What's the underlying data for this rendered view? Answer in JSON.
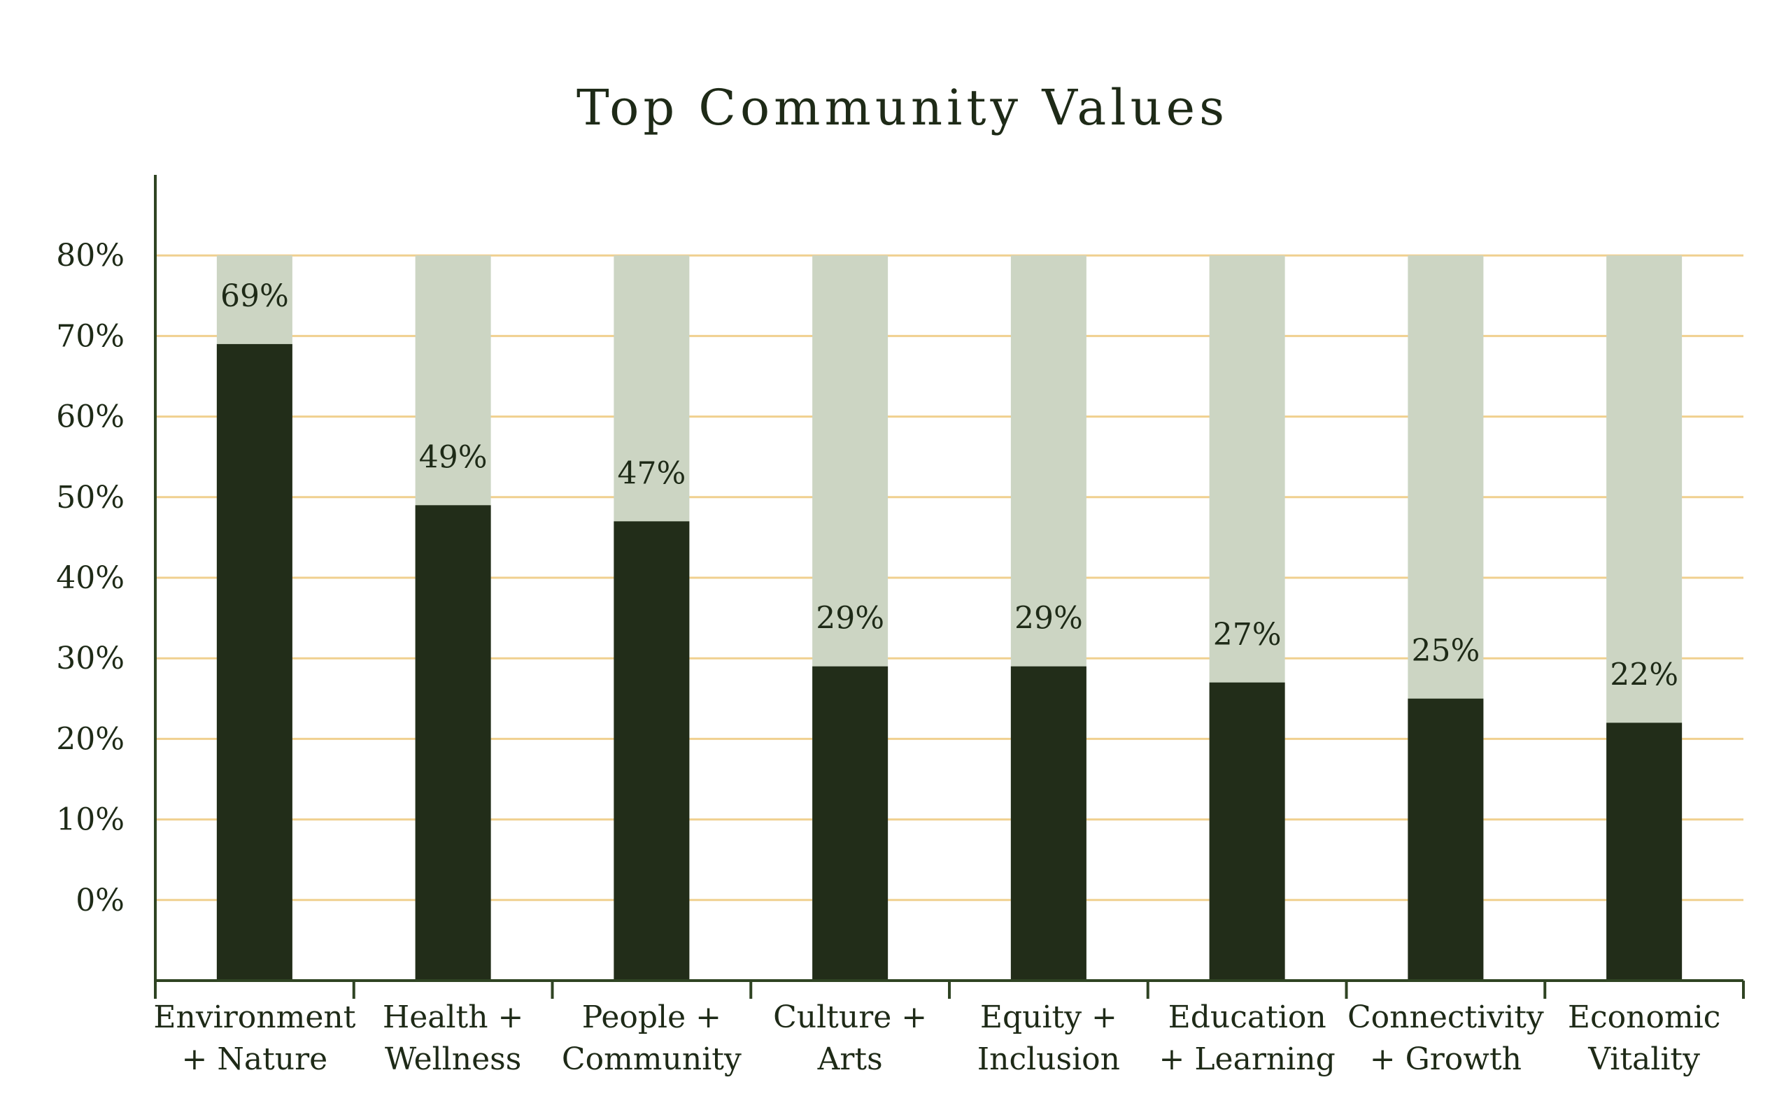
{
  "chart_data": {
    "type": "bar",
    "title": "Top Community Values",
    "xlabel": "",
    "ylabel": "",
    "ylim": [
      -10,
      90
    ],
    "y_ticks": [
      0,
      10,
      20,
      30,
      40,
      50,
      60,
      70,
      80
    ],
    "y_tick_labels": [
      "0%",
      "10%",
      "20%",
      "30%",
      "40%",
      "50%",
      "60%",
      "70%",
      "80%"
    ],
    "categories": [
      [
        "Environment",
        "+ Nature"
      ],
      [
        "Health +",
        "Wellness"
      ],
      [
        "People +",
        "Community"
      ],
      [
        "Culture +",
        "Arts"
      ],
      [
        "Equity +",
        "Inclusion"
      ],
      [
        "Education",
        "+ Learning"
      ],
      [
        "Connectivity",
        "+ Growth"
      ],
      [
        "Economic",
        "Vitality"
      ]
    ],
    "values": [
      69,
      49,
      47,
      29,
      29,
      27,
      25,
      22
    ],
    "value_labels": [
      "69%",
      "49%",
      "47%",
      "29%",
      "29%",
      "27%",
      "25%",
      "22%"
    ],
    "background_max": 80,
    "grid": true,
    "legend": "none",
    "colors": {
      "bar": "#222d19",
      "bar_background": "#ccd5c3",
      "grid": "#f0d08f",
      "axis": "#2f4423",
      "text": "#1e2a17"
    }
  }
}
